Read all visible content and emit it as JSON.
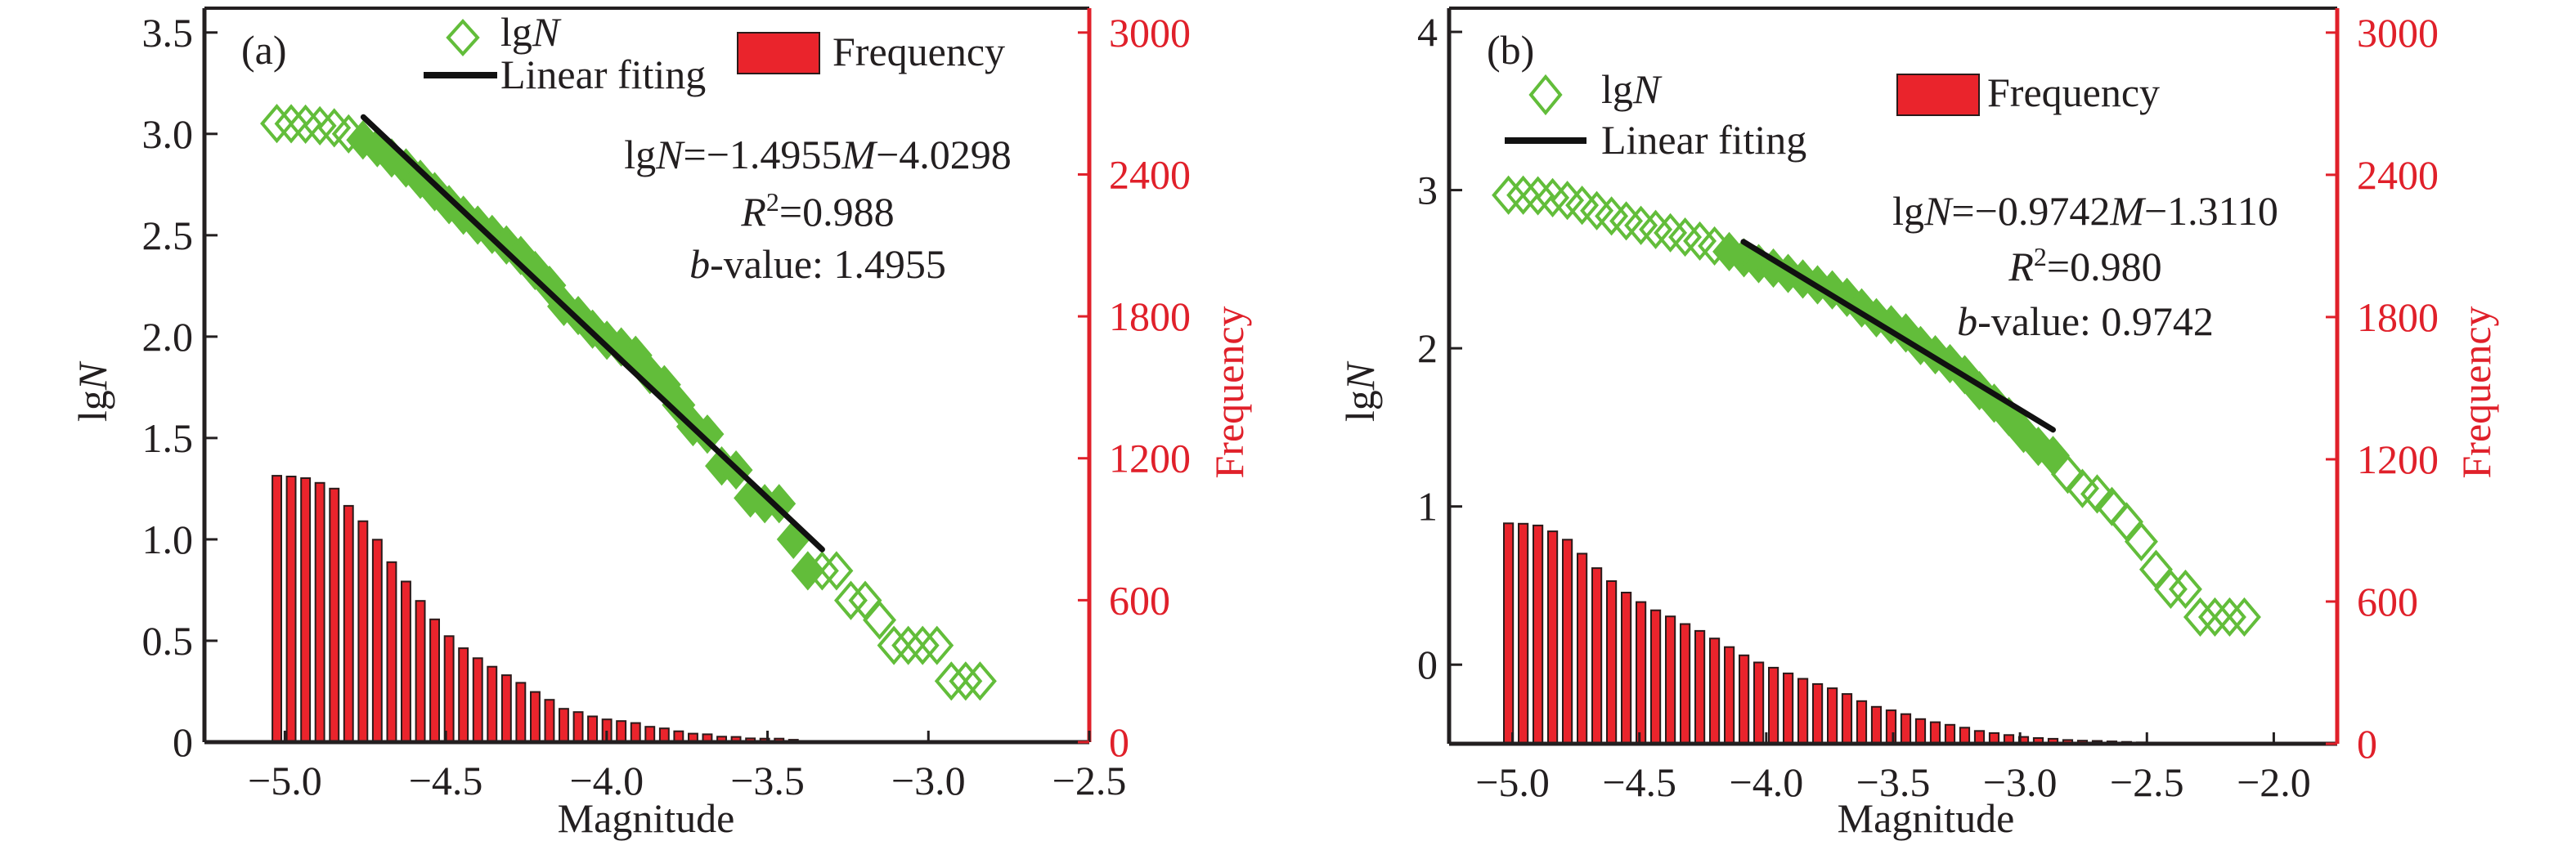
{
  "colors": {
    "scatter": "#62bd3a",
    "bar_fill": "#ea242c",
    "bar_edge": "#2b1a1a",
    "fit_line": "#111111",
    "axis": "#231f20",
    "right_axis": "#e0202a"
  },
  "chart_data": [
    {
      "panel_label": "(a)",
      "type": "bar+scatter",
      "xlabel": "Magnitude",
      "ylabel": "lgN",
      "ylabel_right": "Frequency",
      "xlim": [
        -5.25,
        -2.5
      ],
      "ylim": [
        0,
        3.62
      ],
      "ylim_right": [
        0,
        3103
      ],
      "xticks": [
        -5.0,
        -4.5,
        -4.0,
        -3.5,
        -3.0,
        -2.5
      ],
      "xtick_labels": [
        "−5.0",
        "−4.5",
        "−4.0",
        "−3.5",
        "−3.0",
        "−2.5"
      ],
      "yticks": [
        0,
        0.5,
        1.0,
        1.5,
        2.0,
        2.5,
        3.0,
        3.5
      ],
      "ytick_labels": [
        "0",
        "0.5",
        "1.0",
        "1.5",
        "2.0",
        "2.5",
        "3.0",
        "3.5"
      ],
      "yticks_right": [
        0,
        600,
        1200,
        1800,
        2400,
        3000
      ],
      "ytick_labels_right": [
        "0",
        "600",
        "1200",
        "1800",
        "2400",
        "3000"
      ],
      "legend": {
        "scatter_label": "lgN",
        "line_label": "Linear fiting",
        "bar_label": "Frequency",
        "placement": "top"
      },
      "annotation": {
        "equation": "lgN=−1.4955M−4.0298",
        "r2": "R²=0.988",
        "b_value": "b-value: 1.4955"
      },
      "fit": {
        "slope": -1.4955,
        "intercept": -4.0298,
        "x_range": [
          -4.756,
          -3.33
        ]
      },
      "bin_start": -5.025,
      "bin_step": 0.0446,
      "frequency": [
        1126,
        1123,
        1116,
        1096,
        1072,
        999,
        934,
        856,
        761,
        679,
        597,
        519,
        448,
        397,
        355,
        319,
        283,
        251,
        212,
        179,
        141,
        127,
        109,
        96,
        89,
        81,
        65,
        58,
        46,
        36,
        33,
        23,
        22,
        16,
        15,
        15,
        10
      ],
      "lgN": [
        3.051,
        3.05,
        3.048,
        3.04,
        3.03,
        3.0,
        2.97,
        2.932,
        2.881,
        2.832,
        2.776,
        2.715,
        2.651,
        2.599,
        2.55,
        2.504,
        2.452,
        2.4,
        2.326,
        2.253,
        2.149,
        2.104,
        2.037,
        1.982,
        1.949,
        1.908,
        1.813,
        1.763,
        1.663,
        1.556,
        1.519,
        1.362,
        1.342,
        1.204,
        1.176,
        1.176,
        1.0,
        0.845,
        0.845,
        0.845,
        0.699,
        0.699,
        0.602,
        0.477,
        0.477,
        0.477,
        0.477,
        0.301,
        0.301,
        0.301
      ],
      "fitted_index_range": [
        6,
        37
      ]
    },
    {
      "panel_label": "(b)",
      "type": "bar+scatter",
      "xlabel": "Magnitude",
      "ylabel": "lgN",
      "ylabel_right": "Frequency",
      "xlim": [
        -5.25,
        -1.75
      ],
      "ylim": [
        -0.5,
        4.15
      ],
      "ylim_right": [
        0,
        3103
      ],
      "xticks": [
        -5.0,
        -4.5,
        -4.0,
        -3.5,
        -3.0,
        -2.5,
        -2.0
      ],
      "xtick_labels": [
        "−5.0",
        "−4.5",
        "−4.0",
        "−3.5",
        "−3.0",
        "−2.5",
        "−2.0"
      ],
      "yticks": [
        0,
        1,
        2,
        3,
        4
      ],
      "ytick_labels": [
        "0",
        "1",
        "2",
        "3",
        "4"
      ],
      "yticks_right": [
        0,
        600,
        1200,
        1800,
        2400,
        3000
      ],
      "ytick_labels_right": [
        "0",
        "600",
        "1200",
        "1800",
        "2400",
        "3000"
      ],
      "legend": {
        "scatter_label": "lgN",
        "line_label": "Linear fiting",
        "bar_label": "Frequency",
        "placement": "top-left"
      },
      "annotation": {
        "equation": "lgN=−0.9742M−1.3110",
        "r2": "R²=0.980",
        "b_value": "b-value: 0.9742"
      },
      "fit": {
        "slope": -0.9742,
        "intercept": -1.311,
        "x_range": [
          -4.09,
          -2.87
        ]
      },
      "bin_start": -5.016,
      "bin_step": 0.058,
      "frequency": [
        930,
        928,
        921,
        896,
        861,
        802,
        741,
        686,
        638,
        598,
        563,
        537,
        505,
        476,
        444,
        408,
        373,
        343,
        321,
        297,
        274,
        252,
        234,
        210,
        180,
        156,
        141,
        125,
        104,
        91,
        80,
        68,
        54,
        45,
        37,
        29,
        24,
        21,
        16,
        13,
        12,
        10,
        8,
        6,
        4,
        3,
        3,
        2,
        2,
        2,
        2
      ],
      "lgN": [
        2.968,
        2.968,
        2.964,
        2.952,
        2.935,
        2.904,
        2.87,
        2.836,
        2.805,
        2.777,
        2.751,
        2.73,
        2.703,
        2.678,
        2.647,
        2.611,
        2.572,
        2.535,
        2.507,
        2.473,
        2.438,
        2.401,
        2.369,
        2.322,
        2.255,
        2.193,
        2.149,
        2.097,
        2.017,
        1.959,
        1.903,
        1.833,
        1.732,
        1.653,
        1.568,
        1.462,
        1.38,
        1.322,
        1.204,
        1.114,
        1.079,
        1.0,
        0.903,
        0.778,
        0.602,
        0.477,
        0.477,
        0.301,
        0.301,
        0.301,
        0.301
      ],
      "fitted_index_range": [
        15,
        37
      ]
    }
  ]
}
